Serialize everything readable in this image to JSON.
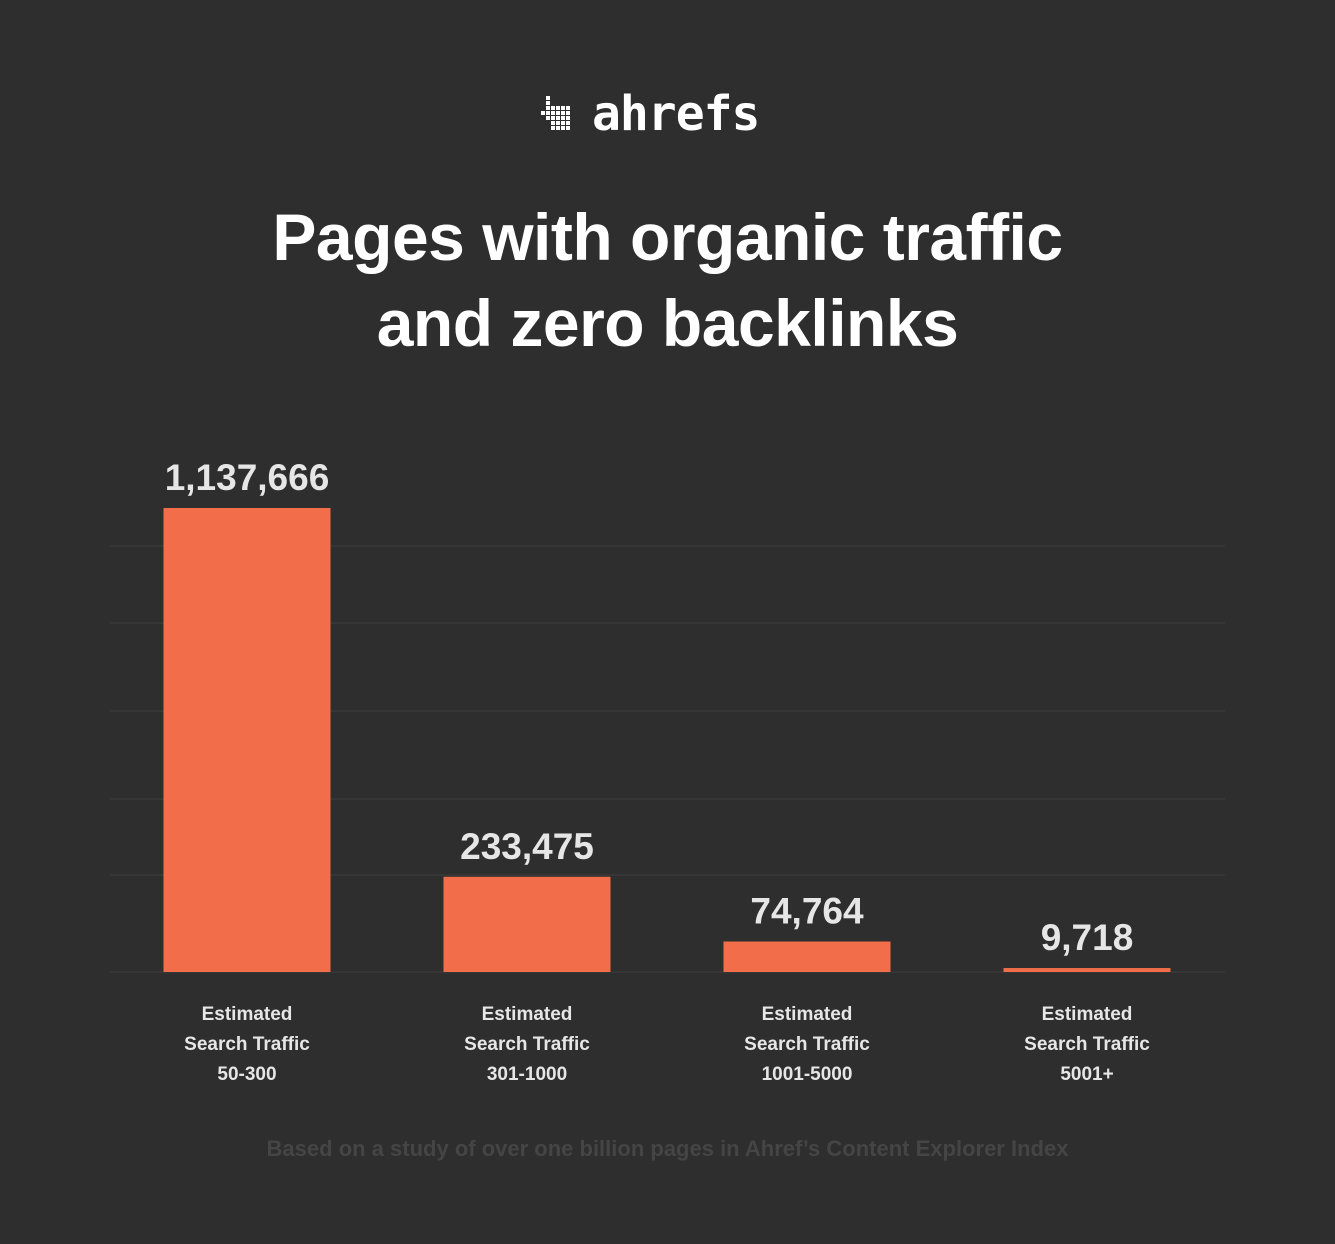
{
  "brand": {
    "logo_text": "ahrefs",
    "logo_icon": "ahrefs-pixel-arrow-icon"
  },
  "title": {
    "line1": "Pages with organic traffic",
    "line2": "and zero backlinks"
  },
  "colors": {
    "background": "#2e2e2e",
    "bar": "#f26e4b",
    "gridline": "#3e3e3e",
    "label": "#e6e6e6",
    "footnote": "#454545"
  },
  "chart_data": {
    "type": "bar",
    "categories": [
      [
        "Estimated",
        "Search Traffic",
        "50-300"
      ],
      [
        "Estimated",
        "Search Traffic",
        "301-1000"
      ],
      [
        "Estimated",
        "Search Traffic",
        "1001-5000"
      ],
      [
        "Estimated",
        "Search Traffic",
        "5001+"
      ]
    ],
    "values": [
      1137666,
      233475,
      74764,
      9718
    ],
    "data_labels": [
      "1,137,666",
      "233,475",
      "74,764",
      "9,718"
    ],
    "title": "Pages with organic traffic and zero backlinks",
    "xlabel": "",
    "ylabel": "",
    "ylim": [
      0,
      1137666
    ],
    "grid": true,
    "legend": "none"
  },
  "footnote": "Based on a study of over one billion pages in Ahref’s Content Explorer Index"
}
